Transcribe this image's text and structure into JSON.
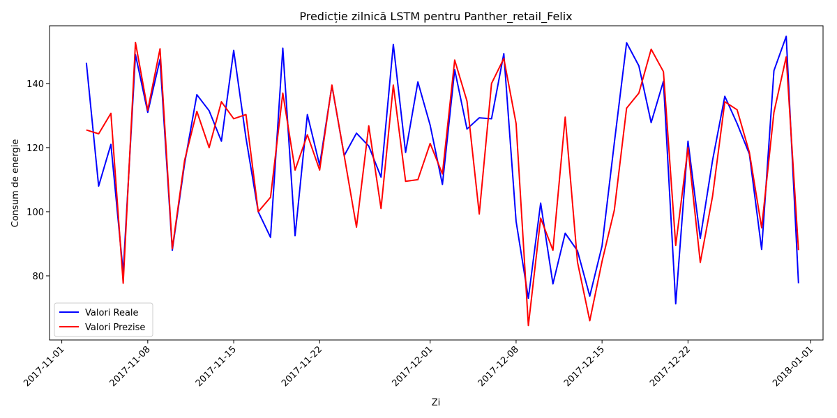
{
  "chart_data": {
    "type": "line",
    "title": "Predicție zilnică LSTM pentru Panther_retail_Felix",
    "xlabel": "Zi",
    "ylabel": "Consum de energie",
    "x_start": "2017-11-03",
    "x_end": "2017-12-30",
    "xlim": [
      "2017-10-31",
      "2018-01-02"
    ],
    "ylim": [
      60,
      158
    ],
    "x_ticks": [
      "2017-11-01",
      "2017-11-08",
      "2017-11-15",
      "2017-11-22",
      "2017-12-01",
      "2017-12-08",
      "2017-12-15",
      "2017-12-22",
      "2018-01-01"
    ],
    "y_ticks": [
      80,
      100,
      120,
      140
    ],
    "grid": false,
    "legend_position": "lower-left",
    "series": [
      {
        "name": "Valori Reale",
        "color": "#0000ff",
        "values": [
          146.5,
          108,
          121,
          81,
          149,
          131,
          147.5,
          88,
          115,
          136.5,
          131.5,
          122,
          150.3,
          123,
          100,
          92,
          151,
          92.5,
          130.3,
          114.5,
          139.3,
          117.5,
          124.5,
          120.5,
          110.8,
          152.2,
          118.5,
          140.5,
          127,
          108.5,
          144.3,
          125.8,
          129.3,
          129,
          149.3,
          97,
          73,
          102.7,
          77.5,
          93.3,
          87.8,
          73.7,
          89.3,
          121.5,
          152.7,
          145.5,
          127.8,
          140.7,
          71.3,
          122,
          91.7,
          116,
          136,
          127.5,
          118,
          88.2,
          144,
          154.7,
          77.7
        ]
      },
      {
        "name": "Valori Prezise",
        "color": "#ff0000",
        "values": [
          125.5,
          124.3,
          130.7,
          77.7,
          152.8,
          131.7,
          150.8,
          88.5,
          116,
          131.3,
          120,
          134.3,
          129,
          130.3,
          100,
          104.5,
          137,
          113,
          124,
          113,
          139.5,
          117.5,
          95.2,
          126.8,
          101,
          139.5,
          109.5,
          110,
          121.3,
          111.8,
          147.3,
          134.5,
          99.3,
          140,
          147.8,
          127.5,
          64.5,
          98,
          88,
          129.5,
          84.3,
          66,
          84.5,
          100.5,
          132.3,
          137,
          150.7,
          143.7,
          89.5,
          120,
          84.2,
          104.8,
          134.3,
          131.8,
          118.5,
          95,
          131,
          148.3,
          88
        ]
      }
    ]
  }
}
